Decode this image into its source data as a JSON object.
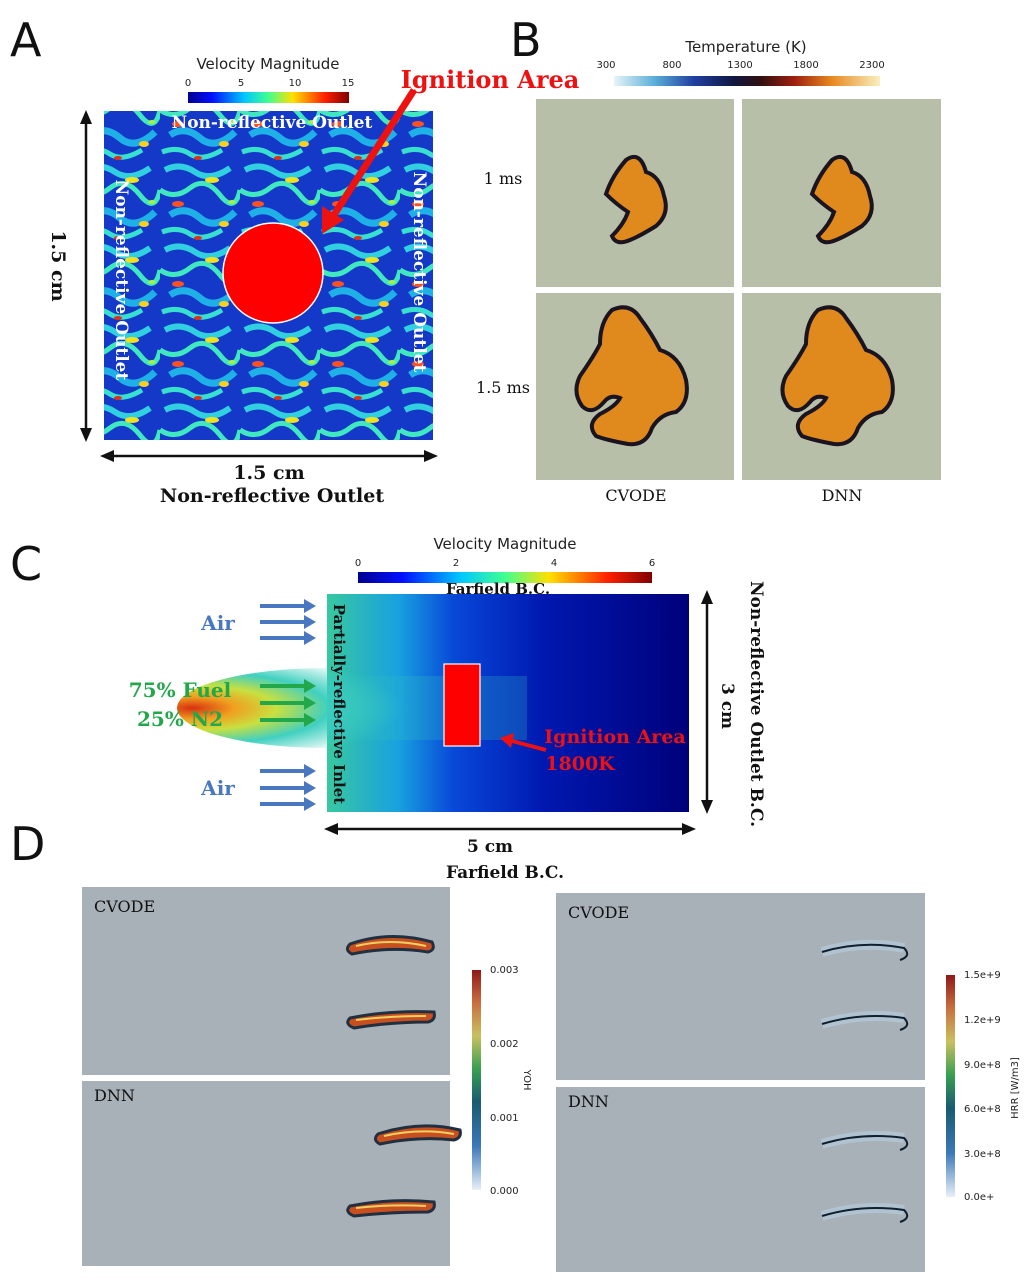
{
  "panel_letters": [
    "A",
    "B",
    "C",
    "D"
  ],
  "panelA": {
    "colorbar_title": "Velocity Magnitude",
    "colorbar_ticks": [
      "0",
      "5",
      "10",
      "15"
    ],
    "top_label": "Non-reflective Outlet",
    "left_label": "Non-reflective Outlet",
    "right_label": "Non-reflective Outlet",
    "bottom_label": "Non-reflective Outlet",
    "width_label": "1.5 cm",
    "height_label": "1.5 cm",
    "ignition_label": "Ignition Area",
    "ignition_color": "#ff0000"
  },
  "panelB": {
    "colorbar_title": "Temperature (K)",
    "colorbar_ticks": [
      "300",
      "800",
      "1300",
      "1800",
      "2300"
    ],
    "row_labels": [
      "1 ms",
      "1.5 ms"
    ],
    "col_labels": [
      "CVODE",
      "DNN"
    ],
    "background_color": "#b8bfa8",
    "flame_color": "#e08a1e"
  },
  "panelC": {
    "colorbar_title": "Velocity Magnitude",
    "colorbar_ticks": [
      "0",
      "2",
      "4",
      "6"
    ],
    "top_label": "Farfield B.C.",
    "bottom_label": "Farfield B.C.",
    "inlet_label": "Partially-reflective Inlet",
    "outlet_label": "Non-reflective Outlet B.C.",
    "width_label": "5 cm",
    "height_label": "3 cm",
    "air_label": "Air",
    "fuel_label_1": "75% Fuel",
    "fuel_label_2": "25% N2",
    "ignition_label_1": "Ignition Area",
    "ignition_label_2": "1800K",
    "air_color": "#4a78c0",
    "fuel_color": "#22a84a"
  },
  "panelD": {
    "left": {
      "top_label": "CVODE",
      "bottom_label": "DNN",
      "colorbar_title": "YOH",
      "colorbar_ticks": [
        "0.003",
        "0.002",
        "0.001",
        "0.000"
      ]
    },
    "right": {
      "top_label": "CVODE",
      "bottom_label": "DNN",
      "colorbar_title": "HRR [W/m3]",
      "colorbar_ticks": [
        "1.5e+9",
        "1.2e+9",
        "9.0e+8",
        "6.0e+8",
        "3.0e+8",
        "0.0e+"
      ]
    },
    "background_color": "#a8b0b8"
  }
}
